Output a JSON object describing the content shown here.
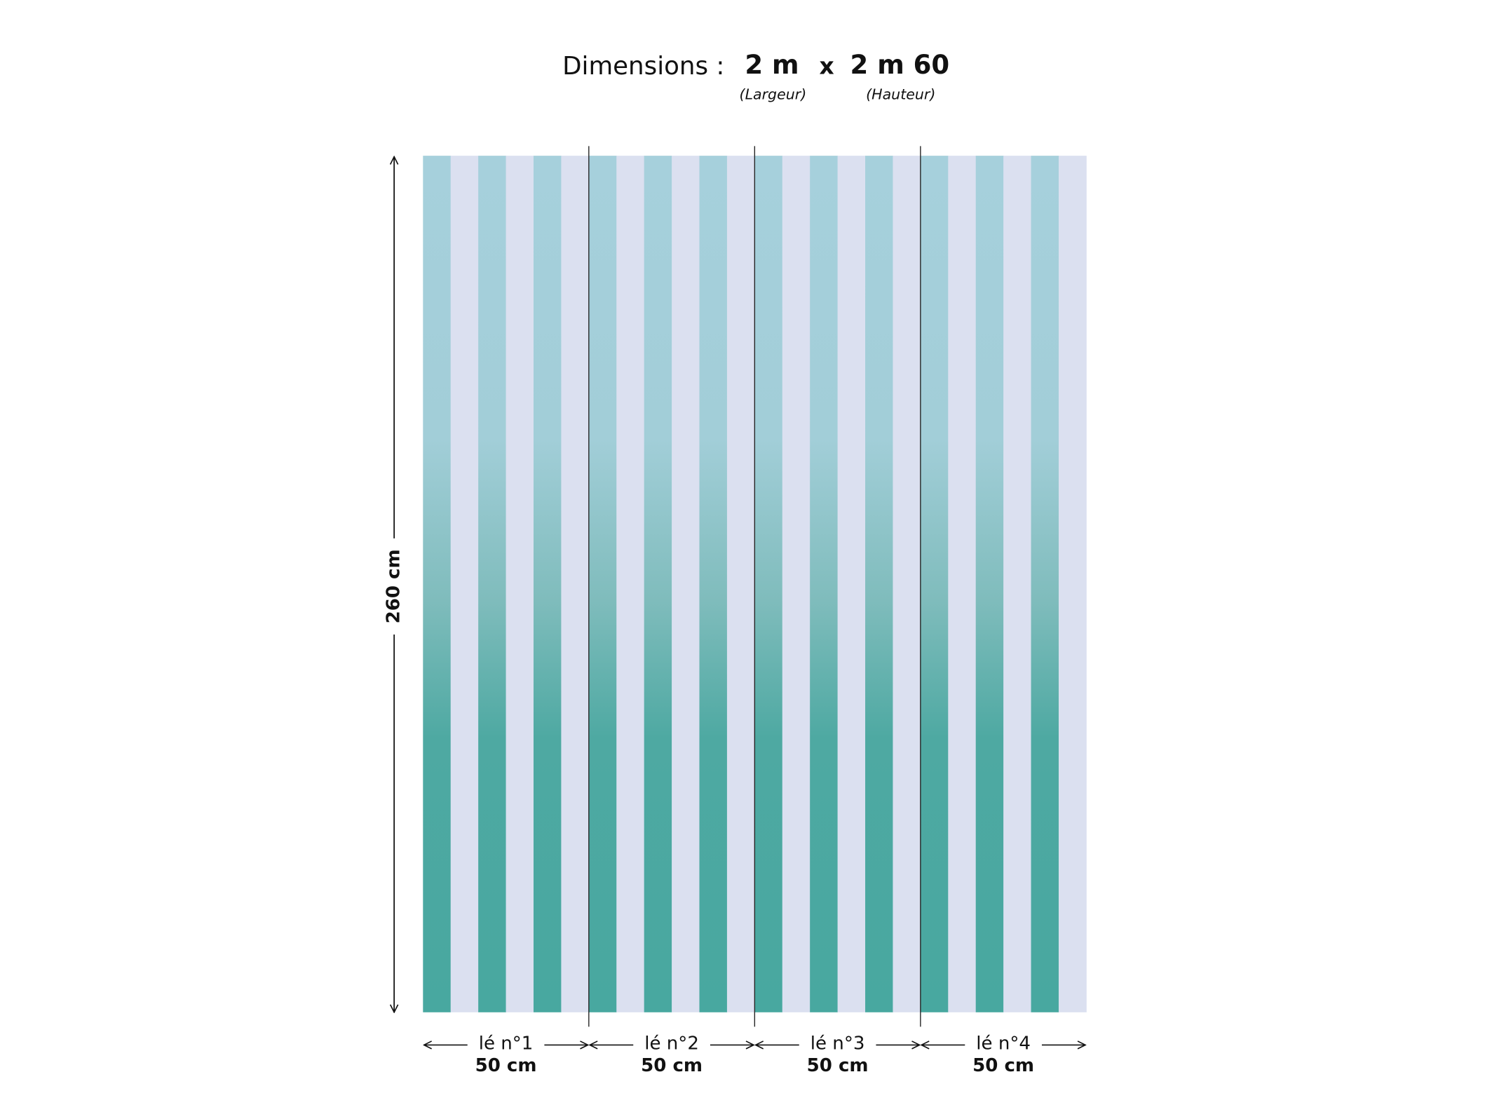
{
  "header": {
    "prefix": "Dimensions :",
    "width": "2 m",
    "times": "x",
    "height": "2 m 60",
    "width_caption": "(Largeur)",
    "height_caption": "(Hauteur)"
  },
  "height_label": "260 cm",
  "panels": [
    {
      "label": "lé n°1",
      "width": "50 cm"
    },
    {
      "label": "lé n°2",
      "width": "50 cm"
    },
    {
      "label": "lé n°3",
      "width": "50 cm"
    },
    {
      "label": "lé n°4",
      "width": "50 cm"
    }
  ]
}
